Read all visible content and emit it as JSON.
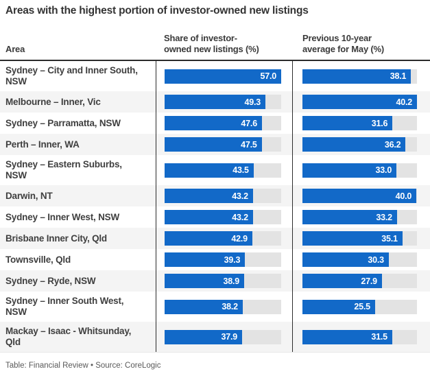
{
  "title": "Areas with the highest portion of investor-owned new listings",
  "table": {
    "headers": {
      "area": "Area",
      "share_line1": "Share of investor-",
      "share_line2": "owned new listings (%)",
      "avg_line1": "Previous 10-year",
      "avg_line2": "average for May (%)"
    }
  },
  "chart_data": {
    "type": "bar",
    "title": "Areas with the highest portion of investor-owned new listings",
    "orientation": "horizontal",
    "categories": [
      "Sydney – City and Inner South, NSW",
      "Melbourne – Inner, Vic",
      "Sydney – Parramatta, NSW",
      "Perth – Inner, WA",
      "Sydney – Eastern Suburbs, NSW",
      "Darwin, NT",
      "Sydney – Inner West, NSW",
      "Brisbane Inner City, Qld",
      "Townsville, Qld",
      "Sydney – Ryde, NSW",
      "Sydney – Inner South West, NSW",
      "Mackay – Isaac - Whitsunday, Qld"
    ],
    "series": [
      {
        "name": "Share of investor-owned new listings (%)",
        "values": [
          57.0,
          49.3,
          47.6,
          47.5,
          43.5,
          43.2,
          43.2,
          42.9,
          39.3,
          38.9,
          38.2,
          37.9
        ]
      },
      {
        "name": "Previous 10-year average for May (%)",
        "values": [
          38.1,
          40.2,
          31.6,
          36.2,
          33.0,
          40.0,
          33.2,
          35.1,
          30.3,
          27.9,
          25.5,
          31.5
        ]
      }
    ],
    "scale_note": "each column's bars scaled to that column's max value",
    "value_decimals": 1,
    "grid": false,
    "legend": false,
    "colors": {
      "bar_fill": "#1269c8",
      "bar_track": "#e3e3e3",
      "row_alt_background": "#f4f4f4",
      "header_rule": "#2b2b2b",
      "value_text": "#ffffff"
    }
  },
  "footer": {
    "note": "Table: Financial Review • Source: CoreLogic"
  }
}
